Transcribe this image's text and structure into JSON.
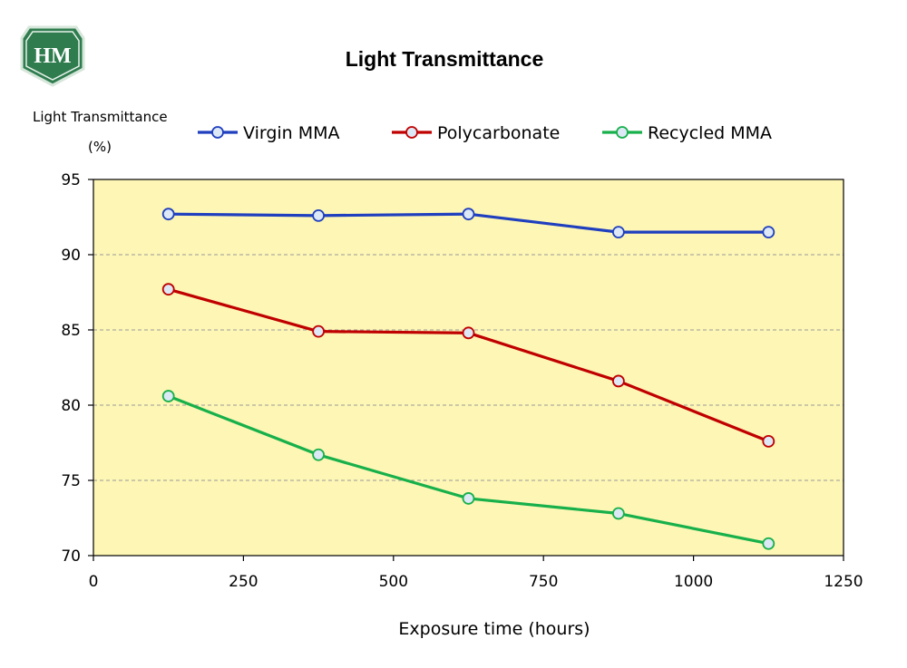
{
  "logo": {
    "text": "HM",
    "fill": "#2f7d4f",
    "border": "#e9f2ec"
  },
  "chart_data": {
    "type": "line",
    "title": "Light Transmittance",
    "ylabel": "Light Transmittance",
    "ylabel_unit": "(%)",
    "xlabel": "Exposure time (hours)",
    "xlim": [
      0,
      1250
    ],
    "ylim": [
      70,
      95
    ],
    "xticks": [
      0,
      250,
      500,
      750,
      1000,
      1250
    ],
    "yticks": [
      70,
      75,
      80,
      85,
      90,
      95
    ],
    "grid": "horizontal dashed",
    "legend_position": "top",
    "plot_background": "#fdf6b4",
    "x": [
      125,
      375,
      625,
      875,
      1125
    ],
    "series": [
      {
        "name": "Virgin MMA",
        "color": "#1f3fbf",
        "values": [
          92.7,
          92.6,
          92.7,
          91.5,
          91.5
        ]
      },
      {
        "name": "Polycarbonate",
        "color": "#c00000",
        "values": [
          87.7,
          84.9,
          84.8,
          81.6,
          77.6
        ]
      },
      {
        "name": "Recycled MMA",
        "color": "#17b04a",
        "values": [
          80.6,
          76.7,
          73.8,
          72.8,
          70.8
        ]
      }
    ]
  }
}
